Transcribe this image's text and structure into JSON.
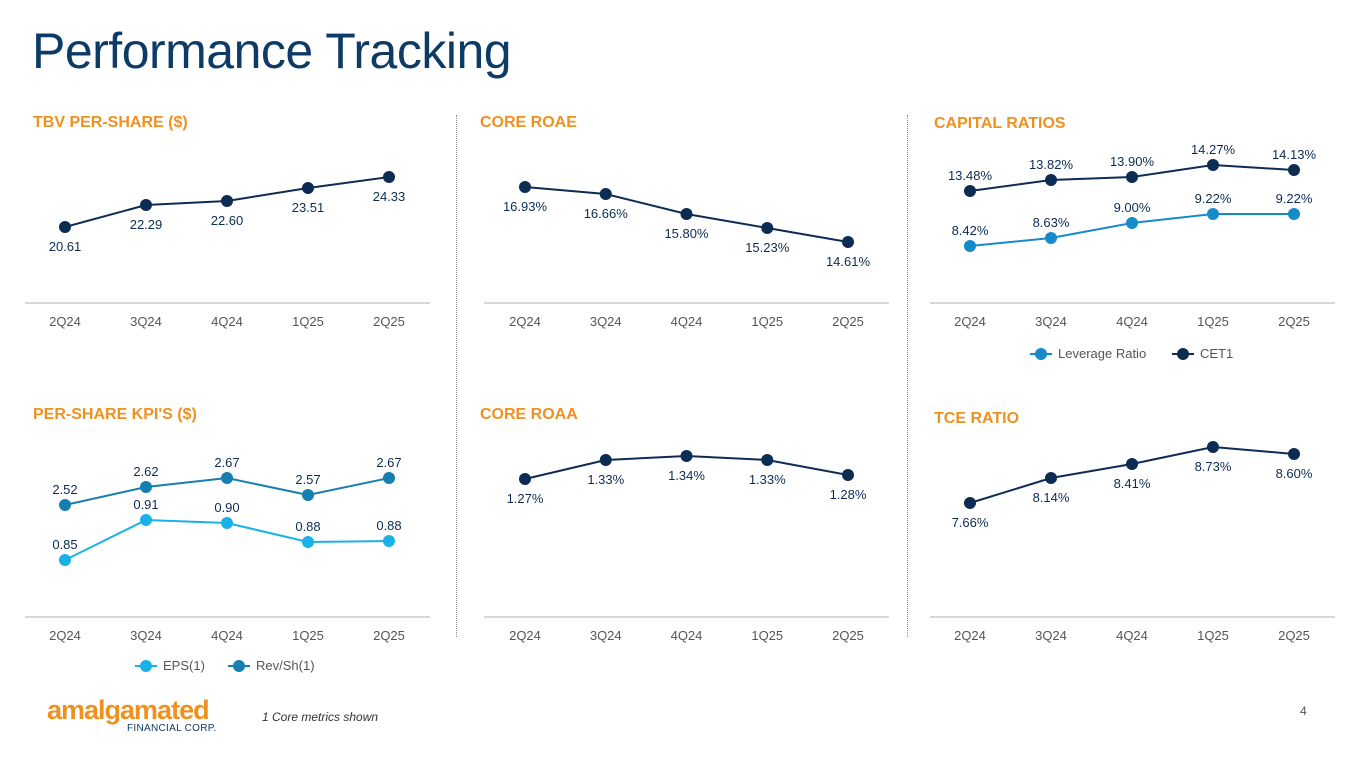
{
  "page": {
    "title": "Performance Tracking",
    "footnote": "1 Core metrics shown",
    "page_number": "4"
  },
  "logo": {
    "name": "amalgamated",
    "sub": "FINANCIAL CORP."
  },
  "colors": {
    "navy": "#0d3b66",
    "orange": "#f0901e",
    "dark_series": "#0d2c54",
    "light_blue": "#1ab0e8",
    "mid_blue": "#157fb0",
    "cap_light": "#178ac9"
  },
  "chart_data": [
    {
      "id": "tbv",
      "type": "line",
      "title": "TBV PER-SHARE ($)",
      "categories": [
        "2Q24",
        "3Q24",
        "4Q24",
        "1Q25",
        "2Q25"
      ],
      "series": [
        {
          "name": "TBV",
          "values": [
            20.61,
            22.29,
            22.6,
            23.51,
            24.33
          ],
          "labels": [
            "20.61",
            "22.29",
            "22.60",
            "23.51",
            "24.33"
          ],
          "color": "#0d2c54",
          "label_pos": "below"
        }
      ],
      "ylim": [
        10,
        26
      ],
      "legend": []
    },
    {
      "id": "roae",
      "type": "line",
      "title": "CORE ROAE",
      "categories": [
        "2Q24",
        "3Q24",
        "4Q24",
        "1Q25",
        "2Q25"
      ],
      "series": [
        {
          "name": "Core ROAE",
          "values": [
            16.93,
            16.66,
            15.8,
            15.23,
            14.61
          ],
          "labels": [
            "16.93%",
            "16.66%",
            "15.80%",
            "15.23%",
            "14.61%"
          ],
          "color": "#0d2c54",
          "label_pos": "below"
        }
      ],
      "ylim": [
        12,
        18
      ],
      "legend": []
    },
    {
      "id": "capital",
      "type": "line",
      "title": "CAPITAL RATIOS",
      "categories": [
        "2Q24",
        "3Q24",
        "4Q24",
        "1Q25",
        "2Q25"
      ],
      "series": [
        {
          "name": "Leverage Ratio",
          "values": [
            8.42,
            8.63,
            9.0,
            9.22,
            9.22
          ],
          "labels": [
            "8.42%",
            "8.63%",
            "9.00%",
            "9.22%",
            "9.22%"
          ],
          "color": "#178ac9",
          "label_pos": "above"
        },
        {
          "name": "CET1",
          "values": [
            13.48,
            13.82,
            13.9,
            14.27,
            14.13
          ],
          "labels": [
            "13.48%",
            "13.82%",
            "13.90%",
            "14.27%",
            "14.13%"
          ],
          "color": "#0d2c54",
          "label_pos": "above"
        }
      ],
      "ylim": [
        6,
        16
      ],
      "legend": [
        "Leverage Ratio",
        "CET1"
      ]
    },
    {
      "id": "kpi",
      "type": "line",
      "title": "PER-SHARE KPI'S ($)",
      "categories": [
        "2Q24",
        "3Q24",
        "4Q24",
        "1Q25",
        "2Q25"
      ],
      "series": [
        {
          "name": "EPS(1)",
          "values": [
            0.85,
            0.91,
            0.9,
            0.88,
            0.88
          ],
          "labels": [
            "0.85",
            "0.91",
            "0.90",
            "0.88",
            "0.88"
          ],
          "color": "#1ab0e8",
          "label_pos": "above"
        },
        {
          "name": "Rev/Sh(1)",
          "values": [
            2.52,
            2.62,
            2.67,
            2.57,
            2.67
          ],
          "labels": [
            "2.52",
            "2.62",
            "2.67",
            "2.57",
            "2.67"
          ],
          "color": "#157fb0",
          "label_pos": "above"
        }
      ],
      "ylim": [
        0,
        3
      ],
      "legend": [
        "EPS(1)",
        "Rev/Sh(1)"
      ]
    },
    {
      "id": "roaa",
      "type": "line",
      "title": "CORE ROAA",
      "categories": [
        "2Q24",
        "3Q24",
        "4Q24",
        "1Q25",
        "2Q25"
      ],
      "series": [
        {
          "name": "Core ROAA",
          "values": [
            1.27,
            1.33,
            1.34,
            1.33,
            1.28
          ],
          "labels": [
            "1.27%",
            "1.33%",
            "1.34%",
            "1.33%",
            "1.28%"
          ],
          "color": "#0d2c54",
          "label_pos": "below"
        }
      ],
      "ylim": [
        0.9,
        1.4
      ],
      "legend": []
    },
    {
      "id": "tce",
      "type": "line",
      "title": "TCE RATIO",
      "categories": [
        "2Q24",
        "3Q24",
        "4Q24",
        "1Q25",
        "2Q25"
      ],
      "series": [
        {
          "name": "TCE Ratio",
          "values": [
            7.66,
            8.14,
            8.41,
            8.73,
            8.6
          ],
          "labels": [
            "7.66%",
            "8.14%",
            "8.41%",
            "8.73%",
            "8.60%"
          ],
          "color": "#0d2c54",
          "label_pos": "below"
        }
      ],
      "ylim": [
        6.5,
        9.0
      ],
      "legend": []
    }
  ]
}
